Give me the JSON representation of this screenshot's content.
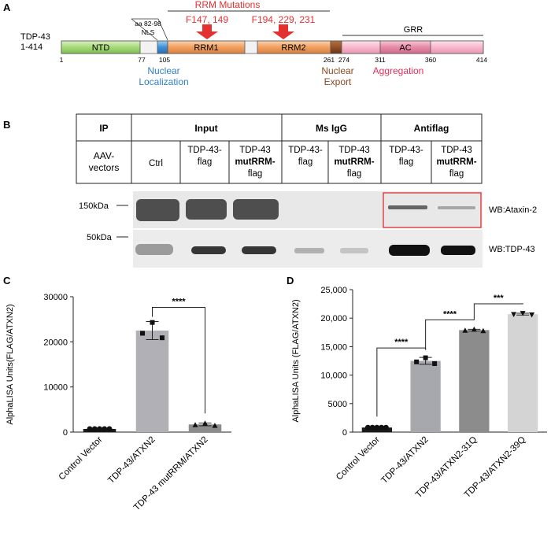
{
  "panel_a": {
    "label": "A",
    "protein_name": "TDP-43",
    "protein_range": "1-414",
    "rrm_mutations_title": "RRM Mutations",
    "mutation_1": "F147, 149",
    "mutation_2": "F194, 229, 231",
    "nls_aa": "aa 82-98",
    "nls_label": "NLS",
    "grr_label": "GRR",
    "domains": {
      "ntd": "NTD",
      "rrm1": "RRM1",
      "rrm2": "RRM2",
      "ac": "AC"
    },
    "positions": [
      "1",
      "77",
      "105",
      "261",
      "274",
      "311",
      "360",
      "414"
    ],
    "nuclear_localization_1": "Nuclear",
    "nuclear_localization_2": "Localization",
    "nuclear_export_1": "Nuclear",
    "nuclear_export_2": "Export",
    "aggregation": "Aggregation",
    "colors": {
      "ntd": "#a8d87a",
      "nls": "#3f8fd6",
      "rrm": "#f0a060",
      "export": "#8a4a20",
      "grr": "#f7b7cc",
      "ac": "#e58aa6",
      "mutation": "#e53030",
      "localization": "#2f7fc8",
      "export_text": "#8a4a20",
      "aggregation_text": "#e0305a"
    }
  },
  "panel_b": {
    "label": "B",
    "headers": {
      "ip": "IP",
      "input": "Input",
      "msigg": "Ms IgG",
      "antiflag": "Antiflag"
    },
    "row_label_1": "AAV-",
    "row_label_2": "vectors",
    "lanes": [
      {
        "l1": "Ctrl",
        "l2": "",
        "l3": ""
      },
      {
        "l1": "TDP-43-",
        "l2": "flag",
        "l3": ""
      },
      {
        "l1": "TDP-43",
        "l2": "mutRRM-",
        "l3": "flag"
      },
      {
        "l1": "TDP-43-",
        "l2": "flag",
        "l3": ""
      },
      {
        "l1": "TDP-43",
        "l2": "mutRRM-",
        "l3": "flag"
      },
      {
        "l1": "TDP-43-",
        "l2": "flag",
        "l3": ""
      },
      {
        "l1": "TDP-43",
        "l2": "mutRRM-",
        "l3": "flag"
      }
    ],
    "marker_150": "150kDa",
    "marker_50": "50kDa",
    "wb_ataxin": "WB:Ataxin-2",
    "wb_tdp": "WB:TDP-43"
  },
  "chart_data": [
    {
      "type": "bar",
      "panel": "C",
      "categories": [
        "Control Vector",
        "TDP-43/ATXN2",
        "TDP-43 mutRRM/ATXN2"
      ],
      "values": [
        700,
        22500,
        1700
      ],
      "errors": [
        150,
        2000,
        300
      ],
      "ylabel": "AlphaLISA Units(FLAG/ATXN2)",
      "ylim": [
        0,
        30000
      ],
      "yticks": [
        "0",
        "10000",
        "20000",
        "30000"
      ],
      "significance": [
        {
          "from": 1,
          "to": 2,
          "label": "****"
        }
      ],
      "colors": [
        "#1a1a1a",
        "#b0b0b6",
        "#8c8c8c"
      ]
    },
    {
      "type": "bar",
      "panel": "D",
      "categories": [
        "Control Vector",
        "TDP-43/ATXN2",
        "TDP-43/ATXN2-31Q",
        "TDP-43/ATXN2-39Q"
      ],
      "values": [
        800,
        12500,
        17900,
        20700
      ],
      "errors": [
        150,
        600,
        150,
        150
      ],
      "ylabel": "AlphaLISA Units (FLAG/ATXN2)",
      "ylim": [
        0,
        25000
      ],
      "yticks": [
        "0",
        "5000",
        "10,000",
        "15,000",
        "20,000",
        "25,000"
      ],
      "significance": [
        {
          "from": 0,
          "to": 1,
          "label": "****"
        },
        {
          "from": 1,
          "to": 2,
          "label": "****"
        },
        {
          "from": 2,
          "to": 3,
          "label": "***"
        }
      ],
      "colors": [
        "#1a1a1a",
        "#a7a7ae",
        "#8c8c8c",
        "#d4d4d4"
      ]
    }
  ]
}
